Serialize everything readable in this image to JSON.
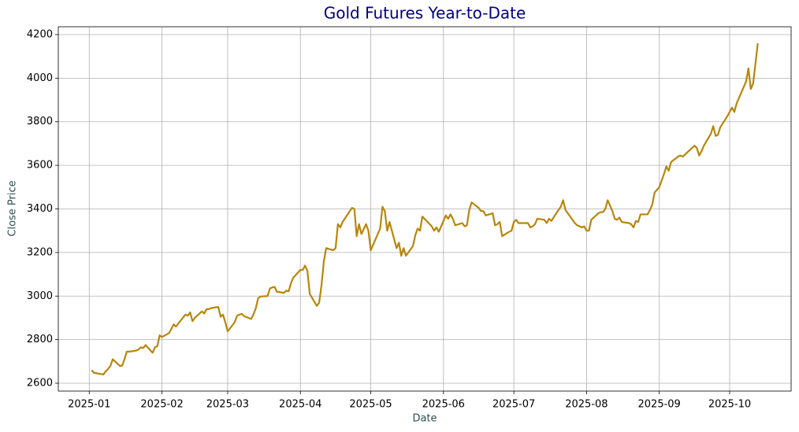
{
  "chart_data": {
    "type": "line",
    "title": "Gold Futures Year-to-Date",
    "xlabel": "Date",
    "ylabel": "Close Price",
    "color": "#b8860b",
    "grid": true,
    "xlim": [
      -13.2,
      299.2
    ],
    "ylim": [
      2564,
      4236
    ],
    "xticks": [
      {
        "value": 0,
        "label": "2025-01"
      },
      {
        "value": 31,
        "label": "2025-02"
      },
      {
        "value": 59,
        "label": "2025-03"
      },
      {
        "value": 90,
        "label": "2025-04"
      },
      {
        "value": 120,
        "label": "2025-05"
      },
      {
        "value": 151,
        "label": "2025-06"
      },
      {
        "value": 181,
        "label": "2025-07"
      },
      {
        "value": 212,
        "label": "2025-08"
      },
      {
        "value": 243,
        "label": "2025-09"
      },
      {
        "value": 273,
        "label": "2025-10"
      }
    ],
    "yticks": [
      2600,
      2800,
      3000,
      3200,
      3400,
      3600,
      3800,
      4000,
      4200
    ],
    "x": [
      1,
      2,
      6,
      7,
      8,
      9,
      10,
      13,
      14,
      15,
      16,
      17,
      20,
      21,
      22,
      23,
      24,
      27,
      28,
      29,
      30,
      31,
      34,
      35,
      36,
      37,
      38,
      41,
      42,
      43,
      44,
      45,
      48,
      49,
      50,
      51,
      52,
      55,
      56,
      57,
      58,
      59,
      62,
      63,
      64,
      65,
      66,
      69,
      70,
      71,
      72,
      73,
      76,
      77,
      78,
      79,
      80,
      83,
      84,
      85,
      86,
      87,
      90,
      91,
      92,
      93,
      94,
      97,
      98,
      99,
      100,
      101,
      104,
      105,
      106,
      107,
      108,
      112,
      113,
      114,
      115,
      116,
      118,
      119,
      120,
      124,
      125,
      126,
      127,
      128,
      131,
      132,
      133,
      134,
      135,
      138,
      139,
      140,
      141,
      142,
      146,
      147,
      148,
      149,
      152,
      153,
      154,
      155,
      156,
      159,
      160,
      161,
      162,
      163,
      166,
      167,
      168,
      169,
      172,
      173,
      174,
      175,
      176,
      179,
      180,
      181,
      182,
      183,
      187,
      188,
      189,
      190,
      191,
      194,
      195,
      196,
      197,
      200,
      201,
      202,
      203,
      204,
      207,
      208,
      209,
      210,
      211,
      212,
      213,
      214,
      216,
      217,
      218,
      219,
      220,
      221,
      222,
      223,
      224,
      225,
      226,
      227,
      230,
      231,
      232,
      233,
      234,
      235,
      238,
      239,
      240,
      241,
      243,
      244,
      245,
      246,
      247,
      248,
      251,
      252,
      253,
      254,
      257,
      258,
      259,
      260,
      261,
      262,
      265,
      266,
      267,
      268,
      269,
      272,
      273,
      274,
      275,
      276,
      279,
      280,
      281,
      282,
      283,
      285
    ],
    "values": [
      2660,
      2648,
      2640,
      2655,
      2665,
      2680,
      2710,
      2680,
      2680,
      2710,
      2745,
      2745,
      2750,
      2755,
      2765,
      2762,
      2775,
      2740,
      2765,
      2770,
      2820,
      2812,
      2830,
      2850,
      2870,
      2860,
      2875,
      2915,
      2910,
      2925,
      2885,
      2900,
      2930,
      2920,
      2940,
      2940,
      2945,
      2950,
      2905,
      2915,
      2880,
      2838,
      2880,
      2910,
      2915,
      2918,
      2908,
      2895,
      2915,
      2945,
      2990,
      2998,
      3000,
      3035,
      3040,
      3042,
      3020,
      3015,
      3025,
      3022,
      3060,
      3085,
      3120,
      3120,
      3140,
      3115,
      3010,
      2955,
      2970,
      3050,
      3160,
      3220,
      3210,
      3220,
      3330,
      3315,
      3340,
      3405,
      3400,
      3275,
      3330,
      3285,
      3330,
      3300,
      3210,
      3310,
      3410,
      3390,
      3300,
      3340,
      3220,
      3245,
      3185,
      3220,
      3185,
      3230,
      3280,
      3310,
      3300,
      3365,
      3320,
      3300,
      3315,
      3295,
      3370,
      3355,
      3375,
      3355,
      3325,
      3335,
      3320,
      3325,
      3395,
      3430,
      3405,
      3390,
      3390,
      3370,
      3380,
      3325,
      3330,
      3340,
      3275,
      3295,
      3300,
      3340,
      3350,
      3335,
      3335,
      3315,
      3320,
      3330,
      3355,
      3350,
      3335,
      3355,
      3345,
      3395,
      3410,
      3440,
      3395,
      3380,
      3335,
      3325,
      3320,
      3315,
      3320,
      3300,
      3300,
      3350,
      3370,
      3380,
      3385,
      3385,
      3400,
      3440,
      3415,
      3390,
      3355,
      3350,
      3360,
      3340,
      3335,
      3330,
      3315,
      3345,
      3340,
      3375,
      3375,
      3395,
      3420,
      3475,
      3500,
      3530,
      3560,
      3595,
      3575,
      3615,
      3640,
      3645,
      3640,
      3650,
      3680,
      3690,
      3680,
      3645,
      3665,
      3690,
      3745,
      3780,
      3735,
      3740,
      3775,
      3825,
      3845,
      3865,
      3845,
      3885,
      3960,
      3985,
      4045,
      3950,
      3975,
      4160
    ]
  }
}
